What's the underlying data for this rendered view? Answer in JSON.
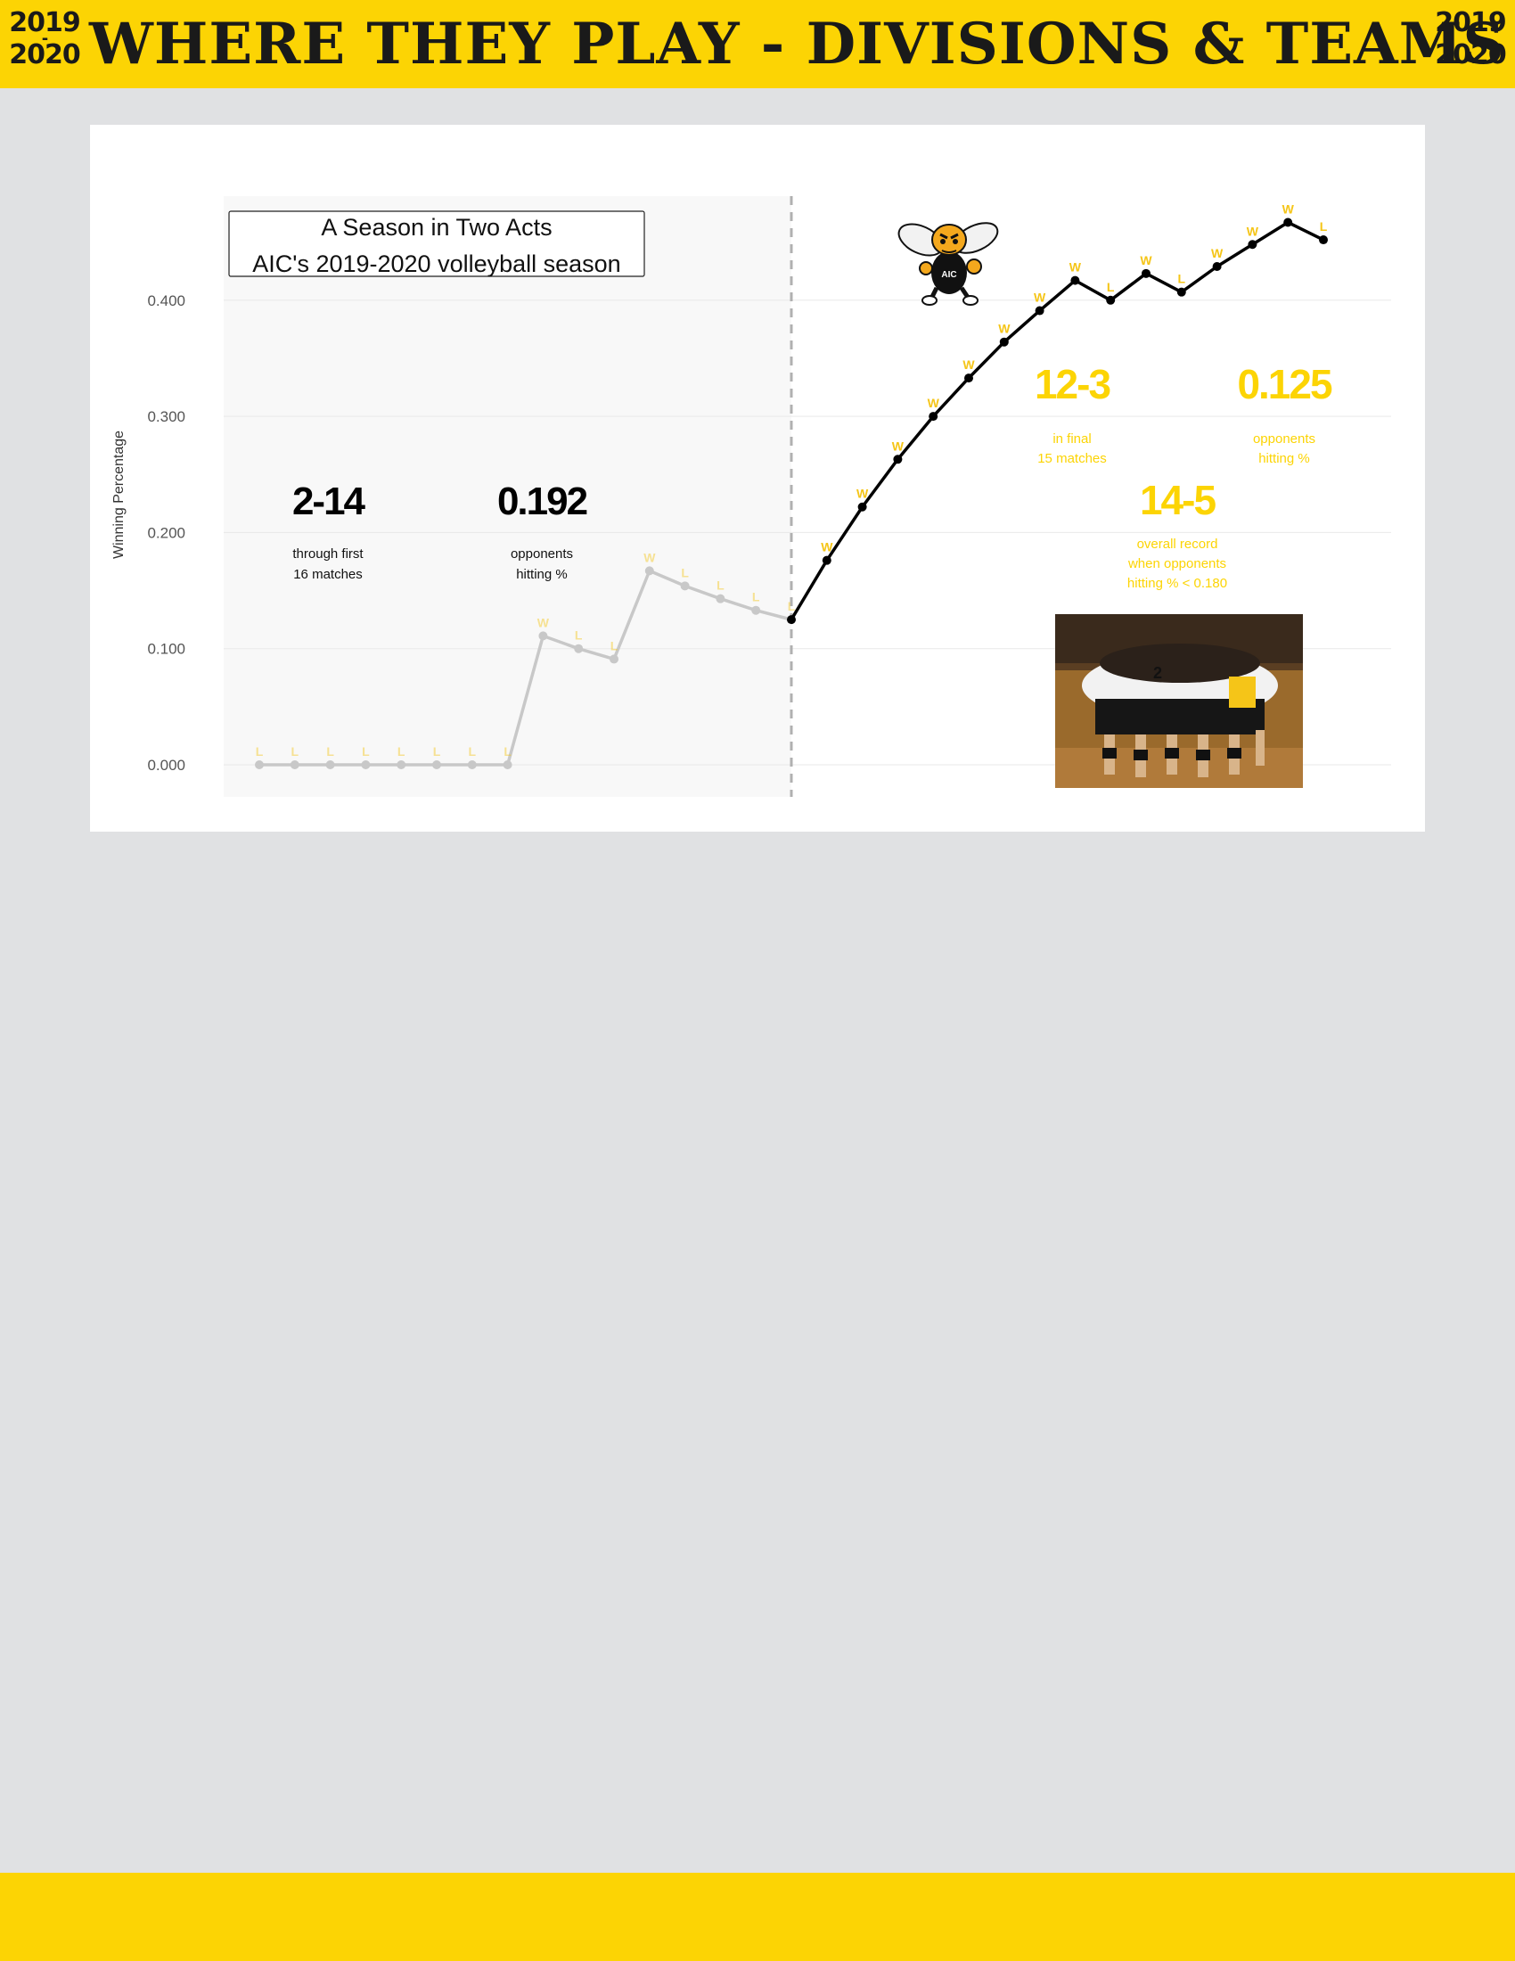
{
  "header": {
    "season_top": "2019",
    "season_dash": "-",
    "season_bottom": "2020",
    "title": "WHERE THEY PLAY - DIVISIONS & TEAMS"
  },
  "colors": {
    "accent_yellow": "#fcd404",
    "first_act_line": "#c8c8c8",
    "second_act_line": "#000000",
    "result_label": "#f5c518",
    "page_background": "#e0e1e3"
  },
  "chart_data": {
    "type": "line",
    "title": "A Season in Two Acts",
    "subtitle": "AIC's 2019-2020 volleyball season",
    "xlabel": "",
    "ylabel": "Winning Percentage",
    "ylim": [
      -0.02,
      0.48
    ],
    "yticks": [
      0,
      0.1,
      0.2,
      0.3,
      0.4
    ],
    "ytick_labels": [
      "0.000",
      "0.100",
      "0.200",
      "0.300",
      "0.400"
    ],
    "grid": true,
    "split_after_match": 16,
    "x": [
      1,
      2,
      3,
      4,
      5,
      6,
      7,
      8,
      9,
      10,
      11,
      12,
      13,
      14,
      15,
      16,
      17,
      18,
      19,
      20,
      21,
      22,
      23,
      24,
      25,
      26,
      27,
      28,
      29,
      30,
      31
    ],
    "results": [
      "L",
      "L",
      "L",
      "L",
      "L",
      "L",
      "L",
      "L",
      "W",
      "L",
      "L",
      "W",
      "L",
      "L",
      "L",
      "L",
      "W",
      "W",
      "W",
      "W",
      "W",
      "W",
      "W",
      "W",
      "L",
      "W",
      "L",
      "W",
      "W",
      "W",
      "L"
    ],
    "series": [
      {
        "values": [
          0,
          0,
          0,
          0,
          0,
          0,
          0,
          0,
          0.111,
          0.1,
          0.091,
          0.167,
          0.154,
          0.143,
          0.133,
          0.125,
          0.176,
          0.222,
          0.263,
          0.3,
          0.333,
          0.364,
          0.391,
          0.417,
          0.4,
          0.423,
          0.407,
          0.429,
          0.448,
          0.467,
          0.452
        ]
      }
    ],
    "annotations": [
      {
        "value": "2-14",
        "text": [
          "through first",
          "16 matches"
        ]
      },
      {
        "value": "0.192",
        "text": [
          "opponents",
          "hitting %"
        ]
      },
      {
        "value": "12-3",
        "text": [
          "in final",
          "15 matches"
        ]
      },
      {
        "value": "0.125",
        "text": [
          "opponents",
          "hitting %"
        ]
      },
      {
        "value": "14-5",
        "text": [
          "overall record",
          "when opponents",
          "hitting % < 0.180"
        ]
      }
    ],
    "logo_text": "AIC"
  }
}
